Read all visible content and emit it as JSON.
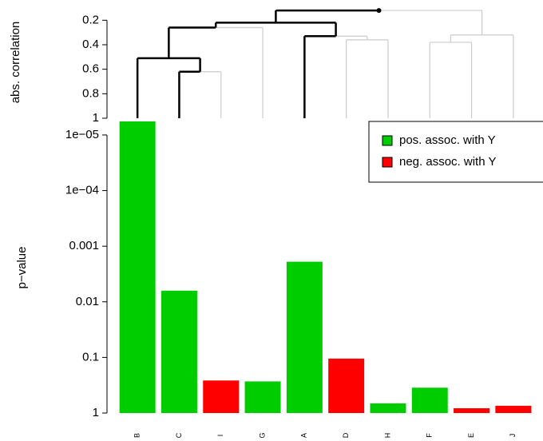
{
  "chart_data": [
    {
      "type": "dendrogram",
      "ylabel": "abs. correlation",
      "ylim": [
        1,
        0.1
      ],
      "yticks": [
        0.2,
        0.4,
        0.6,
        0.8,
        1
      ],
      "highlight_color": "#000000",
      "color": "#cccccc",
      "tree": {
        "height": 0.12,
        "highlight": true,
        "children": [
          {
            "height": 0.22,
            "highlight": true,
            "children": [
              {
                "height": 0.26,
                "highlight": true,
                "children": [
                  {
                    "height": 0.51,
                    "highlight": true,
                    "children": [
                      {
                        "leaf": 0,
                        "highlight": true
                      },
                      {
                        "height": 0.62,
                        "highlight": true,
                        "children": [
                          {
                            "leaf": 1,
                            "highlight": true
                          },
                          {
                            "leaf": 2,
                            "highlight": false
                          }
                        ]
                      }
                    ]
                  },
                  {
                    "leaf": 3,
                    "highlight": false
                  }
                ]
              },
              {
                "height": 0.33,
                "highlight": true,
                "children": [
                  {
                    "leaf": 4,
                    "highlight": true
                  },
                  {
                    "height": 0.36,
                    "highlight": false,
                    "children": [
                      {
                        "leaf": 5,
                        "highlight": false
                      },
                      {
                        "leaf": 6,
                        "highlight": false
                      }
                    ]
                  }
                ]
              }
            ]
          },
          {
            "height": 0.32,
            "highlight": false,
            "children": [
              {
                "height": 0.38,
                "highlight": false,
                "children": [
                  {
                    "leaf": 7,
                    "highlight": false
                  },
                  {
                    "leaf": 8,
                    "highlight": false
                  }
                ]
              },
              {
                "leaf": 9,
                "highlight": false
              }
            ]
          }
        ]
      }
    },
    {
      "type": "bar",
      "ylabel": "p−value",
      "log_scale": true,
      "categories": [
        "B",
        "C",
        "I",
        "G",
        "A",
        "D",
        "H",
        "F",
        "E",
        "J"
      ],
      "values": [
        5.7e-06,
        0.0063,
        0.26,
        0.27,
        0.0019,
        0.105,
        0.67,
        0.35,
        0.82,
        0.74
      ],
      "colors": [
        "#00cd00",
        "#00cd00",
        "#ff0000",
        "#00cd00",
        "#00cd00",
        "#ff0000",
        "#00cd00",
        "#00cd00",
        "#ff0000",
        "#ff0000"
      ],
      "ylim": [
        1,
        5e-06
      ],
      "yticks": [
        {
          "value": 1e-05,
          "label": "1e−05"
        },
        {
          "value": 0.0001,
          "label": "1e−04"
        },
        0.001,
        0.01,
        0.1,
        1
      ],
      "legend": {
        "position": "top-right",
        "entries": [
          {
            "name": "pos. assoc. with Y",
            "color": "#00cd00"
          },
          {
            "name": "neg. assoc. with Y",
            "color": "#ff0000"
          }
        ]
      }
    }
  ]
}
